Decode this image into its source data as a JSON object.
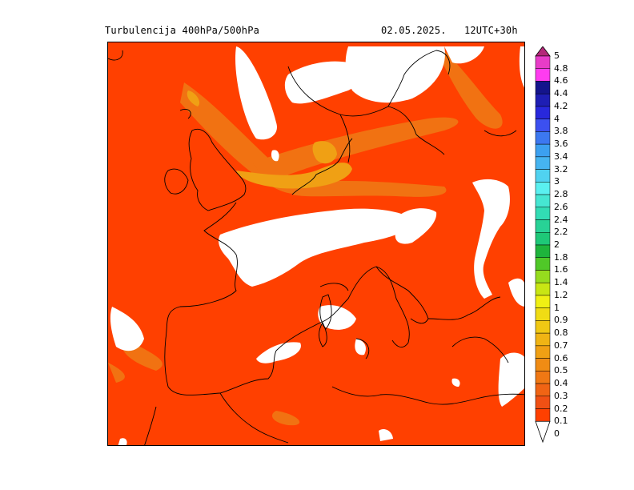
{
  "header": {
    "title": "Turbulencija 400hPa/500hPa",
    "datetime": "02.05.2025.   12UTC+30h"
  },
  "legend": {
    "levels": [
      {
        "label": "5",
        "color": "#b4287a"
      },
      {
        "label": "4.8",
        "color": "#e83cc8"
      },
      {
        "label": "4.6",
        "color": "#ff3cf0"
      },
      {
        "label": "4.4",
        "color": "#14148c"
      },
      {
        "label": "4.2",
        "color": "#1e1eb4"
      },
      {
        "label": "4",
        "color": "#2828dc"
      },
      {
        "label": "3.8",
        "color": "#3c50f0"
      },
      {
        "label": "3.6",
        "color": "#3c78f0"
      },
      {
        "label": "3.4",
        "color": "#3ca0f0"
      },
      {
        "label": "3.2",
        "color": "#46b4f0"
      },
      {
        "label": "3",
        "color": "#50d2f0"
      },
      {
        "label": "2.8",
        "color": "#5af0f0"
      },
      {
        "label": "2.6",
        "color": "#46e6d2"
      },
      {
        "label": "2.4",
        "color": "#32dcb4"
      },
      {
        "label": "2.2",
        "color": "#28d296"
      },
      {
        "label": "2",
        "color": "#1ec878"
      },
      {
        "label": "1.8",
        "color": "#1eb43c"
      },
      {
        "label": "1.6",
        "color": "#50c828"
      },
      {
        "label": "1.4",
        "color": "#96dc1e"
      },
      {
        "label": "1.2",
        "color": "#c8e614"
      },
      {
        "label": "1",
        "color": "#f0f014"
      },
      {
        "label": "0.9",
        "color": "#f0dc14"
      },
      {
        "label": "0.8",
        "color": "#f0c814"
      },
      {
        "label": "0.7",
        "color": "#f0b414"
      },
      {
        "label": "0.6",
        "color": "#f0a014"
      },
      {
        "label": "0.5",
        "color": "#f08c14"
      },
      {
        "label": "0.4",
        "color": "#f07814"
      },
      {
        "label": "0.3",
        "color": "#f06414"
      },
      {
        "label": "0.2",
        "color": "#f05014"
      },
      {
        "label": "0.1",
        "color": "#ff4000"
      },
      {
        "label": "0",
        "color": "#ffffff"
      }
    ]
  },
  "map": {
    "base_color": "#ff4000",
    "moderate_color": "#f07814",
    "high_color": "#f0a014",
    "clear_color": "#ffffff",
    "coastline_color": "#000000"
  }
}
